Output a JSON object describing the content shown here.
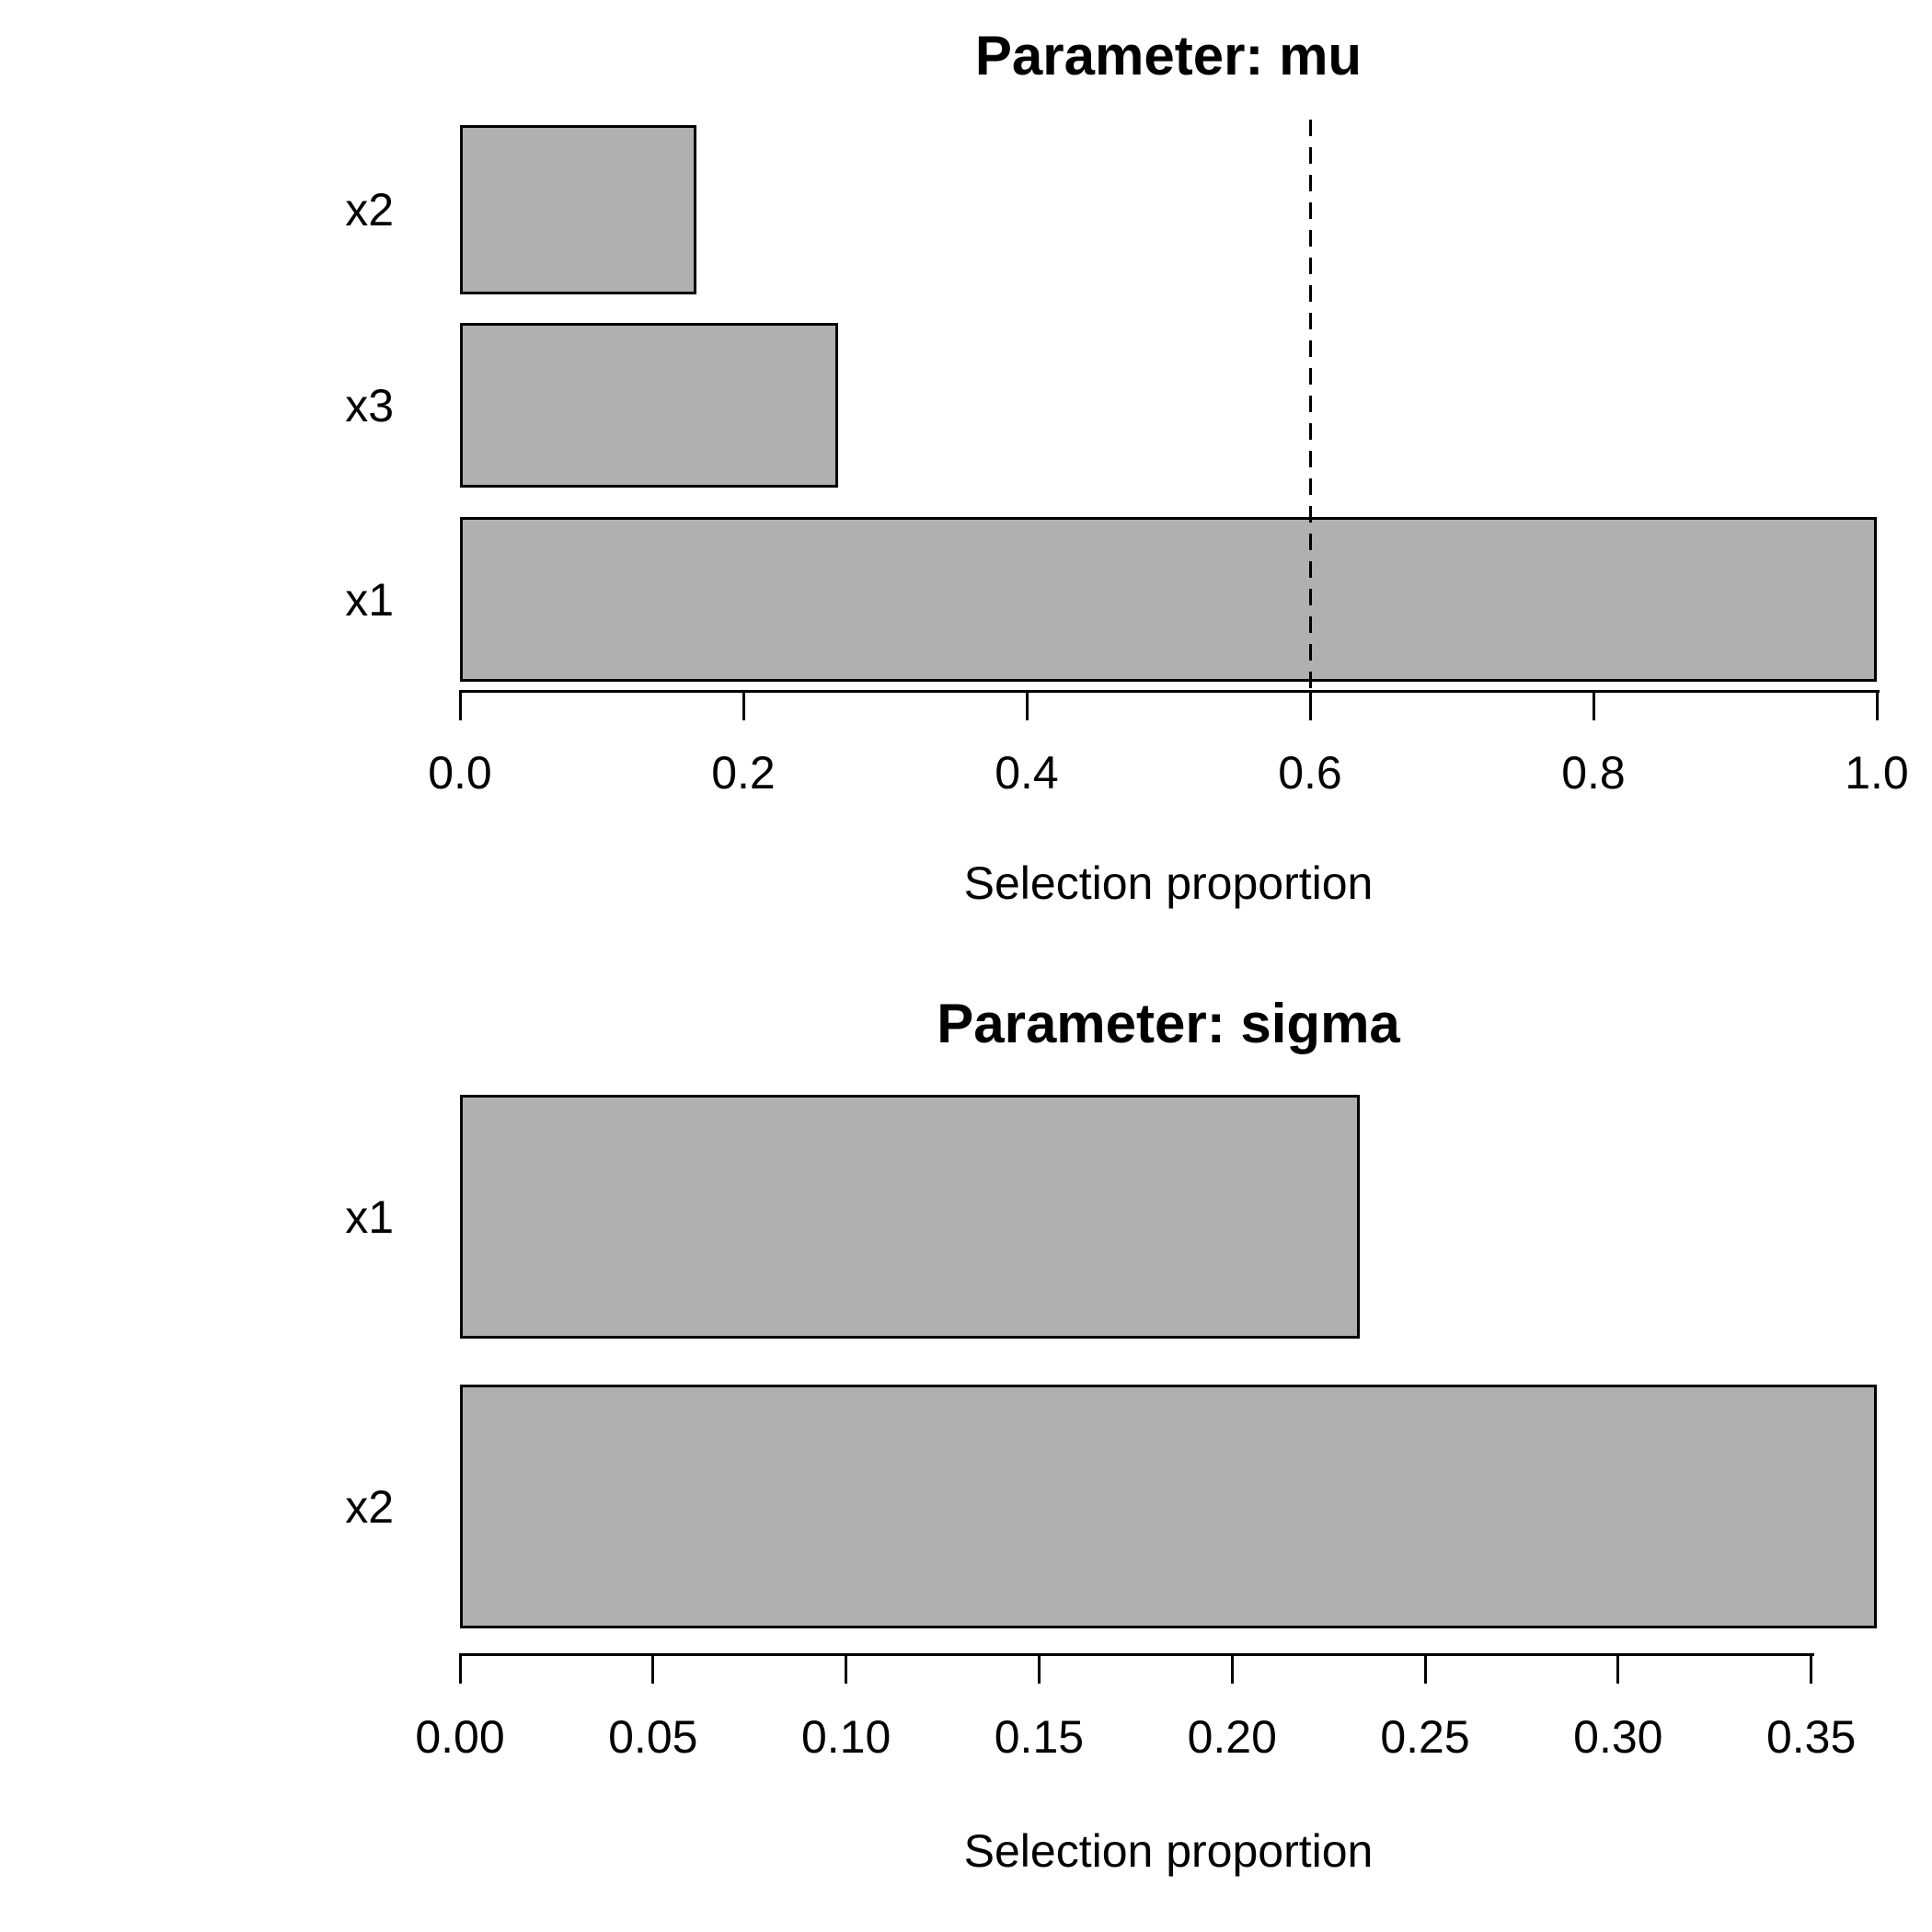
{
  "page": {
    "background": "#FFFFFF",
    "text_color": "#000000"
  },
  "chart_data": [
    {
      "type": "bar",
      "orientation": "horizontal",
      "title": "Parameter: mu",
      "xlabel": "Selection proportion",
      "categories_top_to_bottom": [
        "x2",
        "x3",
        "x1"
      ],
      "values": [
        0.167,
        0.267,
        1.0
      ],
      "xlim": [
        0,
        1.0
      ],
      "ticks": [
        0.0,
        0.2,
        0.4,
        0.6,
        0.8,
        1.0
      ],
      "tick_labels": [
        "0.0",
        "0.2",
        "0.4",
        "0.6",
        "0.8",
        "1.0"
      ],
      "threshold_line": {
        "x": 0.6,
        "style": "dashed",
        "color": "#000000"
      },
      "bar_fill": "#B0B0B0",
      "bar_border": "#000000",
      "grid": false,
      "legend": "none"
    },
    {
      "type": "bar",
      "orientation": "horizontal",
      "title": "Parameter: sigma",
      "xlabel": "Selection proportion",
      "categories_top_to_bottom": [
        "x1",
        "x2"
      ],
      "values": [
        0.233,
        0.367
      ],
      "xlim": [
        0,
        0.367
      ],
      "ticks": [
        0.0,
        0.05,
        0.1,
        0.15,
        0.2,
        0.25,
        0.3,
        0.35
      ],
      "tick_labels": [
        "0.00",
        "0.05",
        "0.10",
        "0.15",
        "0.20",
        "0.25",
        "0.30",
        "0.35"
      ],
      "threshold_line": null,
      "bar_fill": "#B0B0B0",
      "bar_border": "#000000",
      "grid": false,
      "legend": "none"
    }
  ]
}
